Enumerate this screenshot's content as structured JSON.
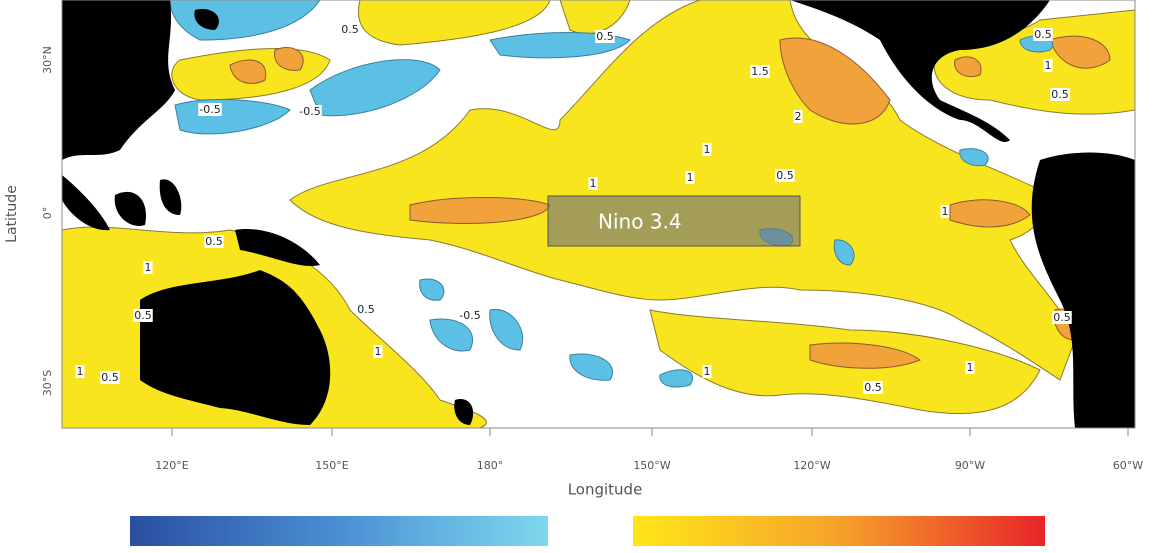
{
  "map": {
    "x_axis_label": "Longitude",
    "y_axis_label": "Latitude",
    "x_ticks": [
      "120°E",
      "150°E",
      "180°",
      "150°W",
      "120°W",
      "90°W",
      "60°W"
    ],
    "y_ticks": [
      "30°N",
      "0°",
      "30°S"
    ],
    "region_label": "Nino 3.4",
    "contour_labels": [
      "0.5",
      "0.5",
      "0.5",
      "0.5",
      "0.5",
      "0.5",
      "0.5",
      "0.5",
      "0.5",
      "0.5",
      "0.5",
      "-0.5",
      "-0.5",
      "-0.5",
      "1",
      "1",
      "1",
      "1",
      "1",
      "1",
      "1",
      "1",
      "1",
      "1",
      "1.5",
      "2"
    ]
  }
}
